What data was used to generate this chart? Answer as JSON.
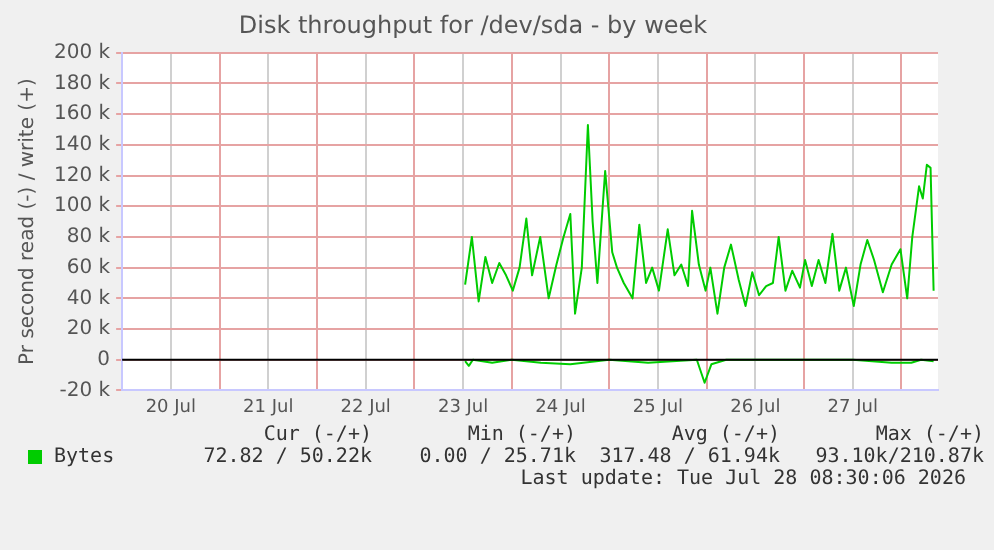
{
  "chart_data": {
    "type": "line",
    "title": "Disk throughput for /dev/sda - by week",
    "ylabel": "Pr second read (-) / write (+)",
    "xlim": [
      "2026-07-20T00:00",
      "2026-07-28T09:00"
    ],
    "xticks": [
      {
        "value": "2026-07-20T12:00",
        "label": "20 Jul"
      },
      {
        "value": "2026-07-21T00:00",
        "label": null
      },
      {
        "value": "2026-07-21T12:00",
        "label": "21 Jul"
      },
      {
        "value": "2026-07-22T00:00",
        "label": null
      },
      {
        "value": "2026-07-22T12:00",
        "label": "22 Jul"
      },
      {
        "value": "2026-07-23T00:00",
        "label": null
      },
      {
        "value": "2026-07-23T12:00",
        "label": "23 Jul"
      },
      {
        "value": "2026-07-24T00:00",
        "label": null
      },
      {
        "value": "2026-07-24T12:00",
        "label": "24 Jul"
      },
      {
        "value": "2026-07-25T00:00",
        "label": null
      },
      {
        "value": "2026-07-25T12:00",
        "label": "25 Jul"
      },
      {
        "value": "2026-07-26T00:00",
        "label": null
      },
      {
        "value": "2026-07-26T12:00",
        "label": "26 Jul"
      },
      {
        "value": "2026-07-27T00:00",
        "label": null
      },
      {
        "value": "2026-07-27T12:00",
        "label": "27 Jul"
      },
      {
        "value": "2026-07-28T00:00",
        "label": null
      }
    ],
    "ylim": [
      -20000,
      200000
    ],
    "yticks": [
      {
        "value": -20000,
        "label": "-20 k"
      },
      0,
      {
        "value": 20000,
        "label": "20 k"
      },
      {
        "value": 40000,
        "label": "40 k"
      },
      {
        "value": 60000,
        "label": "60 k"
      },
      {
        "value": 80000,
        "label": "80 k"
      },
      {
        "value": 100000,
        "label": "100 k"
      },
      {
        "value": 120000,
        "label": "120 k"
      },
      {
        "value": 140000,
        "label": "140 k"
      },
      {
        "value": 160000,
        "label": "160 k"
      },
      {
        "value": 180000,
        "label": "180 k"
      },
      {
        "value": 200000,
        "label": "200 k"
      }
    ],
    "grid": true,
    "legend": "bottom",
    "ref_lines": [
      {
        "axis": "y",
        "value": 0,
        "color": "#000000"
      }
    ],
    "series": [
      {
        "name": "Bytes",
        "color": "#00cc00",
        "x": [
          "2026-07-23T12:30",
          "2026-07-23T14:10",
          "2026-07-23T15:50",
          "2026-07-23T17:30",
          "2026-07-23T19:10",
          "2026-07-23T20:55",
          "2026-07-23T22:35",
          "2026-07-24T00:15",
          "2026-07-24T01:55",
          "2026-07-24T03:35",
          "2026-07-24T05:00",
          "2026-07-24T07:00",
          "2026-07-24T09:05",
          "2026-07-24T11:00",
          "2026-07-24T12:45",
          "2026-07-24T14:25",
          "2026-07-24T15:35",
          "2026-07-24T17:15",
          "2026-07-24T18:45",
          "2026-07-24T19:55",
          "2026-07-24T21:05",
          "2026-07-24T23:00",
          "2026-07-25T00:45",
          "2026-07-25T01:55",
          "2026-07-25T03:35",
          "2026-07-25T05:45",
          "2026-07-25T07:25",
          "2026-07-25T09:05",
          "2026-07-25T10:35",
          "2026-07-25T12:15",
          "2026-07-25T14:25",
          "2026-07-25T16:05",
          "2026-07-25T17:45",
          "2026-07-25T19:25",
          "2026-07-25T20:25",
          "2026-07-25T22:05",
          "2026-07-25T23:45",
          "2026-07-26T00:55",
          "2026-07-26T02:40",
          "2026-07-26T04:20",
          "2026-07-26T06:00",
          "2026-07-26T07:55",
          "2026-07-26T09:35",
          "2026-07-26T11:15",
          "2026-07-26T12:55",
          "2026-07-26T14:40",
          "2026-07-26T16:20",
          "2026-07-26T17:45",
          "2026-07-26T19:25",
          "2026-07-26T21:05",
          "2026-07-26T23:00",
          "2026-07-27T00:15",
          "2026-07-27T01:55",
          "2026-07-27T03:35",
          "2026-07-27T05:15",
          "2026-07-27T07:00",
          "2026-07-27T08:40",
          "2026-07-27T10:20",
          "2026-07-27T12:15",
          "2026-07-27T13:55",
          "2026-07-27T15:35",
          "2026-07-27T17:15",
          "2026-07-27T19:25",
          "2026-07-27T21:35",
          "2026-07-27T23:45",
          "2026-07-28T01:25",
          "2026-07-28T02:40",
          "2026-07-28T04:20",
          "2026-07-28T05:15",
          "2026-07-28T06:15",
          "2026-07-28T07:10",
          "2026-07-28T07:55"
        ],
        "values": [
          49000,
          80000,
          38000,
          67000,
          50000,
          63000,
          55000,
          45000,
          60000,
          92000,
          55000,
          80000,
          40000,
          62000,
          80000,
          95000,
          30000,
          60000,
          153000,
          90000,
          50000,
          123000,
          70000,
          60000,
          50000,
          40000,
          88000,
          50000,
          60000,
          45000,
          85000,
          55000,
          62000,
          48000,
          97000,
          62000,
          45000,
          60000,
          30000,
          60000,
          75000,
          52000,
          35000,
          57000,
          42000,
          48000,
          50000,
          80000,
          45000,
          58000,
          47000,
          65000,
          48000,
          65000,
          50000,
          82000,
          45000,
          60000,
          35000,
          62000,
          78000,
          65000,
          44000,
          62000,
          72000,
          40000,
          80000,
          113000,
          105000,
          127000,
          125000,
          45000
        ]
      },
      {
        "color": "#00cc00",
        "x": [
          "2026-07-23T12:30",
          "2026-07-23T13:25",
          "2026-07-23T14:25",
          "2026-07-23T19:10",
          "2026-07-24T00:00",
          "2026-07-24T07:10",
          "2026-07-24T14:25",
          "2026-07-25T00:00",
          "2026-07-25T09:35",
          "2026-07-25T21:35",
          "2026-07-25T23:30",
          "2026-07-26T01:10",
          "2026-07-26T04:50",
          "2026-07-26T14:25",
          "2026-07-27T00:00",
          "2026-07-27T12:00",
          "2026-07-27T21:35",
          "2026-07-28T02:25",
          "2026-07-28T04:50",
          "2026-07-28T07:55"
        ],
        "values": [
          -1000,
          -4000,
          0,
          -2000,
          0,
          -2000,
          -3000,
          0,
          -2000,
          0,
          -15000,
          -3000,
          0,
          0,
          0,
          0,
          -2000,
          -2000,
          0,
          -1000
        ]
      }
    ],
    "annotations": [
      "Cur (-/+)",
      "Min (-/+)",
      "Avg (-/+)",
      "Max (-/+)",
      "72.82 / 50.22k",
      "0.00 / 25.71k",
      "317.48 / 61.94k",
      "93.10k/210.87k",
      "Last update: Tue Jul 28 08:30:06 2026"
    ]
  }
}
